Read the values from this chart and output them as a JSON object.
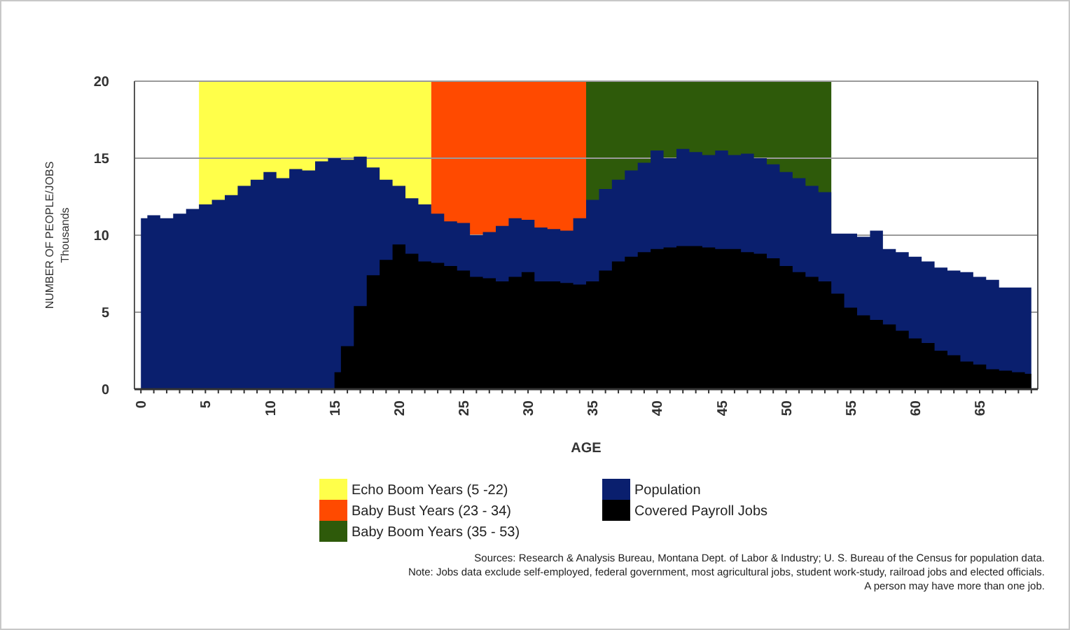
{
  "chart_data": {
    "type": "area",
    "xlabel": "AGE",
    "ylabel": "NUMBER OF PEOPLE/JOBS\nThousands",
    "x": [
      0,
      1,
      2,
      3,
      4,
      5,
      6,
      7,
      8,
      9,
      10,
      11,
      12,
      13,
      14,
      15,
      16,
      17,
      18,
      19,
      20,
      21,
      22,
      23,
      24,
      25,
      26,
      27,
      28,
      29,
      30,
      31,
      32,
      33,
      34,
      35,
      36,
      37,
      38,
      39,
      40,
      41,
      42,
      43,
      44,
      45,
      46,
      47,
      48,
      49,
      50,
      51,
      52,
      53,
      54,
      55,
      56,
      57,
      58,
      59,
      60,
      61,
      62,
      63,
      64,
      65,
      66,
      67,
      68,
      69
    ],
    "xlim": [
      -0.5,
      69.5
    ],
    "xticks": [
      0,
      5,
      10,
      15,
      20,
      25,
      30,
      35,
      40,
      45,
      50,
      55,
      60,
      65
    ],
    "ylim": [
      0,
      20
    ],
    "yticks": [
      0,
      5,
      10,
      15,
      20
    ],
    "grid": "y",
    "legend": "bottom",
    "series": [
      {
        "name": "Population",
        "color": "#0a1f6e",
        "values": [
          11.1,
          11.3,
          11.1,
          11.4,
          11.7,
          12.0,
          12.3,
          12.6,
          13.2,
          13.6,
          14.1,
          13.7,
          14.3,
          14.2,
          14.8,
          15.0,
          14.9,
          15.1,
          14.4,
          13.6,
          13.2,
          12.4,
          12.0,
          11.4,
          10.9,
          10.8,
          10.0,
          10.2,
          10.6,
          11.1,
          11.0,
          10.5,
          10.4,
          10.3,
          11.1,
          12.3,
          13.0,
          13.6,
          14.2,
          14.7,
          15.5,
          15.0,
          15.6,
          15.4,
          15.2,
          15.5,
          15.2,
          15.3,
          15.0,
          14.6,
          14.1,
          13.7,
          13.2,
          12.8,
          10.1,
          10.1,
          9.9,
          10.3,
          9.1,
          8.9,
          8.6,
          8.3,
          7.9,
          7.7,
          7.6,
          7.3,
          7.1,
          6.6,
          6.6,
          6.6
        ]
      },
      {
        "name": "Covered Payroll Jobs",
        "color": "#000000",
        "values": [
          null,
          null,
          null,
          null,
          null,
          null,
          null,
          null,
          null,
          null,
          null,
          null,
          null,
          null,
          null,
          1.1,
          2.8,
          5.4,
          7.4,
          8.4,
          9.4,
          8.8,
          8.3,
          8.2,
          8.0,
          7.7,
          7.3,
          7.2,
          7.0,
          7.3,
          7.6,
          7.0,
          7.0,
          6.9,
          6.8,
          7.0,
          7.7,
          8.3,
          8.6,
          8.9,
          9.1,
          9.2,
          9.3,
          9.3,
          9.2,
          9.1,
          9.1,
          8.9,
          8.8,
          8.5,
          8.0,
          7.6,
          7.3,
          7.0,
          6.2,
          5.3,
          4.8,
          4.5,
          4.2,
          3.8,
          3.3,
          3.0,
          2.5,
          2.2,
          1.8,
          1.6,
          1.3,
          1.2,
          1.1,
          1.0
        ]
      }
    ],
    "bands": [
      {
        "axis": "x",
        "from": 4.5,
        "to": 22.5,
        "label": "Echo Boom Years (5 -22)",
        "color": "#ffff4a"
      },
      {
        "axis": "x",
        "from": 22.5,
        "to": 34.5,
        "label": "Baby Bust Years (23 - 34)",
        "color": "#ff4a00"
      },
      {
        "axis": "x",
        "from": 34.5,
        "to": 53.5,
        "label": "Baby Boom Years (35 - 53)",
        "color": "#2e5a0a"
      }
    ],
    "annotations": [
      "Sources:  Research & Analysis Bureau, Montana Dept. of Labor & Industry; U. S. Bureau of the Census for population data.",
      "Note:  Jobs data exclude self-employed, federal government, most agricultural jobs, student work-study, railroad jobs and elected officials.",
      "A person may have more than one job."
    ]
  }
}
